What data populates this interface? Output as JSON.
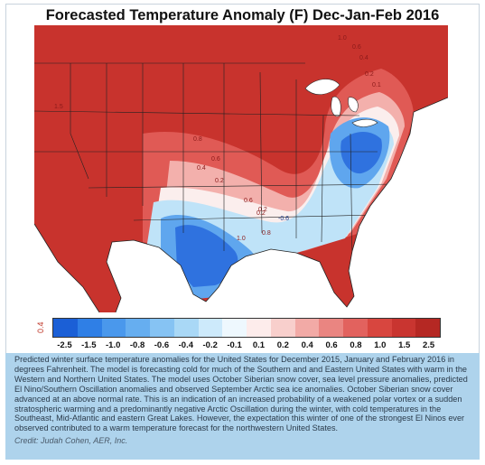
{
  "title": "Forecasted Temperature Anomaly (F) Dec-Jan-Feb 2016",
  "colorbar": {
    "end_label": "0.4",
    "ticks": [
      "-2.5",
      "-1.5",
      "-1.0",
      "-0.8",
      "-0.6",
      "-0.4",
      "-0.2",
      "-0.1",
      "0.1",
      "0.2",
      "0.4",
      "0.6",
      "0.8",
      "1.0",
      "1.5",
      "2.5"
    ],
    "colors": [
      "#1b5fd6",
      "#2f7fe6",
      "#4a98ec",
      "#66aef0",
      "#86c3f3",
      "#a9d8f6",
      "#cdeafb",
      "#eef8fe",
      "#fdeceb",
      "#f8cfcc",
      "#f2aaa6",
      "#ea8581",
      "#e2625e",
      "#d8463f",
      "#c93530",
      "#b52823"
    ]
  },
  "map": {
    "region": "United States",
    "contour_labels": [
      "1.5",
      "1.0",
      "0.6",
      "0.4",
      "0.2",
      "0.1",
      "0.8",
      "0.6",
      "0.4",
      "0.2",
      "1.0",
      "0.8",
      "0.6",
      "0.2",
      "-0.6",
      "0.2"
    ],
    "colors": {
      "warm_strong": "#c8332d",
      "warm_mid": "#e05a55",
      "warm_light": "#f3b0ac",
      "neutral": "#fbeeed",
      "cool_light": "#bfe3f8",
      "cool_mid": "#5fa6ee",
      "cool_strong": "#2f72df"
    }
  },
  "caption": {
    "text": "Predicted winter surface temperature anomalies for the United States for December 2015, January and February 2016 in degrees Fahrenheit. The model is forecasting cold for much of the Southern and and Eastern United States with warm in the Western and Northern United States. The model uses October Siberian snow cover, sea level pressure anomalies, predicted El Nino/Southern Oscillation anomalies and observed September Arctic sea ice anomalies. October Siberian snow cover advanced at an above normal rate. This is an indication of an increased probability of a weakened polar vortex or a sudden stratospheric warming and a predominantly negative Arctic Oscillation during the winter, with cold temperatures in the Southeast, Mid-Atlantic and eastern Great Lakes. However, the expectation this winter of one of the strongest El Ninos ever observed contributed to a warm temperature forecast for the northwestern United States.",
    "credit": "Credit: Judah Cohen, AER, Inc."
  }
}
